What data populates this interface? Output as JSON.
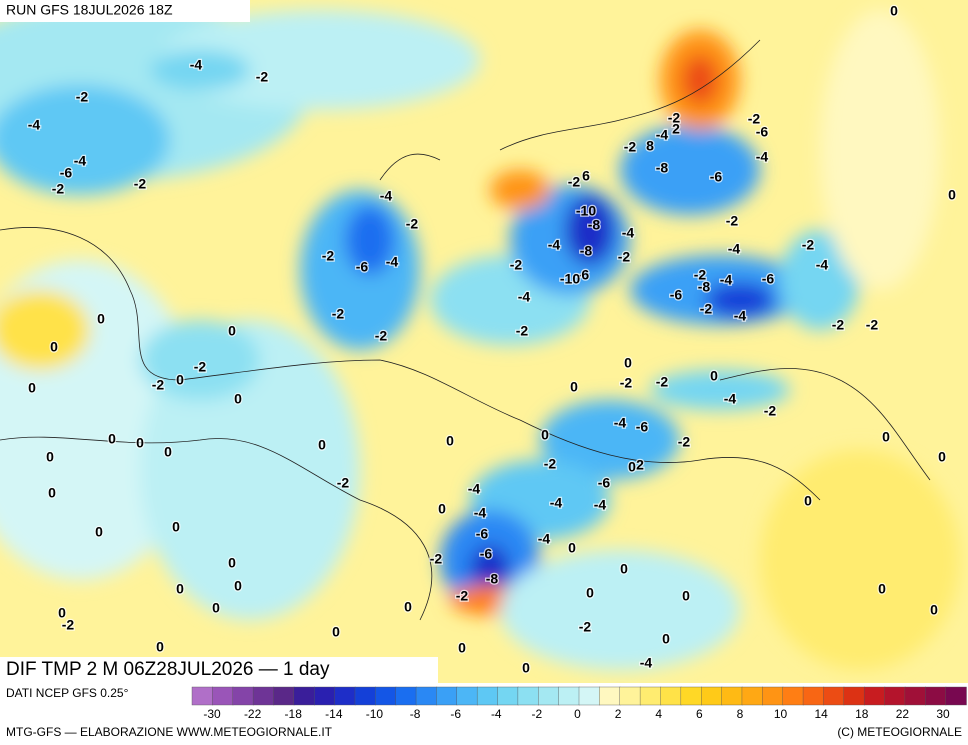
{
  "header": {
    "run": "RUN GFS 18JUL2026 18Z",
    "title": "DIF TMP 2 M 06Z28JUL2026 — 1 day",
    "source": "DATI NCEP GFS 0.25°",
    "footer_left": "MTG-GFS — ELABORAZIONE WWW.METEOGIORNALE.IT",
    "footer_right": "(C) METEOGIORNALE"
  },
  "colorbar": {
    "labels": [
      "-30",
      "-22",
      "-18",
      "-14",
      "-10",
      "-8",
      "-6",
      "-4",
      "-2",
      "0",
      "2",
      "4",
      "6",
      "8",
      "10",
      "14",
      "18",
      "22",
      "30"
    ],
    "colors": [
      "#b06fc8",
      "#9a55b8",
      "#8444a8",
      "#6e3496",
      "#5a2888",
      "#3a1e9a",
      "#2a20b0",
      "#1e2ec8",
      "#1440d8",
      "#1456e6",
      "#1a6ef0",
      "#2a88f4",
      "#3aa0f6",
      "#4cb6f6",
      "#5ec8f4",
      "#74d6f2",
      "#8ce0f2",
      "#a4e8f2",
      "#bcf0f4",
      "#d4f6f6",
      "#fff8c0",
      "#fff39a",
      "#ffec70",
      "#ffe248",
      "#ffd826",
      "#ffca18",
      "#ffba14",
      "#ffa814",
      "#ff9414",
      "#ff7e14",
      "#f86614",
      "#ec4c14",
      "#dc3214",
      "#c81c20",
      "#b4142c",
      "#a01038",
      "#8c0c44",
      "#780850"
    ]
  },
  "contour_labels": [
    "-4",
    "-2",
    "-2",
    "-4",
    "-4",
    "-6",
    "-2",
    "-2",
    "-4",
    "-2",
    "-2",
    "-6",
    "-4",
    "-2",
    "-2",
    "0",
    "0",
    "0",
    "0",
    "-2",
    "-2",
    "0",
    "0",
    "0",
    "0",
    "0",
    "0",
    "0",
    "0",
    "-2",
    "0",
    "0",
    "0",
    "0",
    "0",
    "0",
    "-2",
    "0",
    "0",
    "0",
    "0",
    "0",
    "0",
    "-4",
    "0",
    "-2",
    "0",
    "0",
    "0",
    "0",
    "0",
    "-2",
    "-2",
    "-8",
    "-6",
    "-6",
    "-4",
    "-4",
    "-4",
    "-4",
    "-4",
    "-6",
    "-2",
    "0",
    "0",
    "0",
    "-2",
    "0",
    "-2",
    "0",
    "-4",
    "-2",
    "-4",
    "-6",
    "-2",
    "2",
    "0",
    "-4",
    "-2",
    "-2",
    "-4",
    "-8",
    "-8",
    "-10",
    "-4",
    "-2",
    "-6",
    "-10",
    "-2",
    "6",
    "-2",
    "8",
    "-4",
    "-2",
    "2",
    "-8",
    "-6",
    "-4",
    "-2",
    "-6",
    "-2",
    "-4",
    "-2",
    "-4",
    "-2",
    "-6",
    "-8",
    "-4",
    "-6",
    "-2",
    "-4",
    "-2",
    "-2",
    "0",
    "0",
    "0",
    "0",
    "0",
    "0",
    "0"
  ]
}
